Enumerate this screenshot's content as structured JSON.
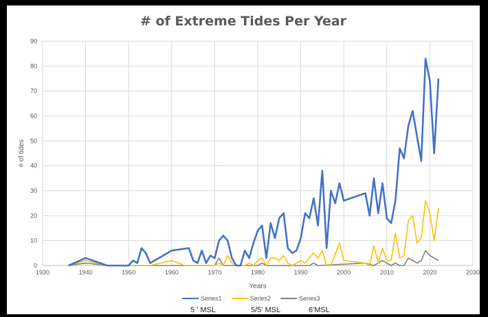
{
  "chart_data": {
    "type": "line",
    "title": "# of Extreme Tides Per Year",
    "xlabel": "Years",
    "ylabel": "# of tides",
    "xlim": [
      1930,
      2030
    ],
    "ylim": [
      0,
      90
    ],
    "x_ticks": [
      1930,
      1940,
      1950,
      1960,
      1970,
      1980,
      1990,
      2000,
      2010,
      2020,
      2030
    ],
    "y_ticks": [
      0,
      10,
      20,
      30,
      40,
      50,
      60,
      70,
      80,
      90
    ],
    "grid": true,
    "legend_position": "bottom",
    "series": [
      {
        "name": "Series1",
        "color": "#4472C4",
        "points": [
          [
            1936,
            0
          ],
          [
            1940,
            3
          ],
          [
            1945,
            0
          ],
          [
            1950,
            0
          ],
          [
            1951,
            2
          ],
          [
            1952,
            1
          ],
          [
            1953,
            7
          ],
          [
            1954,
            5
          ],
          [
            1955,
            1
          ],
          [
            1960,
            6
          ],
          [
            1964,
            7
          ],
          [
            1965,
            2
          ],
          [
            1966,
            1
          ],
          [
            1967,
            6
          ],
          [
            1968,
            1
          ],
          [
            1969,
            4
          ],
          [
            1970,
            3
          ],
          [
            1971,
            10
          ],
          [
            1972,
            12
          ],
          [
            1973,
            10
          ],
          [
            1974,
            3
          ],
          [
            1975,
            0
          ],
          [
            1976,
            0
          ],
          [
            1977,
            6
          ],
          [
            1978,
            3
          ],
          [
            1979,
            9
          ],
          [
            1980,
            14
          ],
          [
            1981,
            16
          ],
          [
            1982,
            3
          ],
          [
            1983,
            17
          ],
          [
            1984,
            11
          ],
          [
            1985,
            19
          ],
          [
            1986,
            21
          ],
          [
            1987,
            7
          ],
          [
            1988,
            5
          ],
          [
            1989,
            6
          ],
          [
            1990,
            11
          ],
          [
            1991,
            21
          ],
          [
            1992,
            19
          ],
          [
            1993,
            27
          ],
          [
            1994,
            16
          ],
          [
            1995,
            38
          ],
          [
            1996,
            7
          ],
          [
            1997,
            30
          ],
          [
            1998,
            25
          ],
          [
            1999,
            33
          ],
          [
            2000,
            26
          ],
          [
            2005,
            29
          ],
          [
            2006,
            20
          ],
          [
            2007,
            35
          ],
          [
            2008,
            21
          ],
          [
            2009,
            33
          ],
          [
            2010,
            19
          ],
          [
            2011,
            17
          ],
          [
            2012,
            26
          ],
          [
            2013,
            47
          ],
          [
            2014,
            43
          ],
          [
            2015,
            56
          ],
          [
            2016,
            62
          ],
          [
            2017,
            52
          ],
          [
            2018,
            42
          ],
          [
            2019,
            83
          ],
          [
            2020,
            74
          ],
          [
            2021,
            45
          ],
          [
            2022,
            75
          ]
        ]
      },
      {
        "name": "Series2",
        "color": "#FFC000",
        "points": [
          [
            1936,
            0
          ],
          [
            1940,
            2
          ],
          [
            1945,
            0
          ],
          [
            1955,
            0
          ],
          [
            1960,
            2
          ],
          [
            1963,
            0
          ],
          [
            1970,
            0
          ],
          [
            1971,
            1
          ],
          [
            1972,
            0
          ],
          [
            1973,
            4
          ],
          [
            1974,
            1
          ],
          [
            1975,
            0
          ],
          [
            1977,
            0
          ],
          [
            1978,
            1
          ],
          [
            1979,
            0
          ],
          [
            1980,
            2
          ],
          [
            1981,
            3
          ],
          [
            1982,
            0
          ],
          [
            1983,
            3
          ],
          [
            1984,
            3
          ],
          [
            1985,
            2
          ],
          [
            1986,
            4
          ],
          [
            1987,
            1
          ],
          [
            1988,
            0
          ],
          [
            1989,
            1
          ],
          [
            1990,
            2
          ],
          [
            1991,
            1
          ],
          [
            1992,
            3
          ],
          [
            1993,
            5
          ],
          [
            1994,
            3
          ],
          [
            1995,
            6
          ],
          [
            1996,
            0
          ],
          [
            1997,
            0
          ],
          [
            1999,
            9
          ],
          [
            2000,
            2
          ],
          [
            2005,
            1
          ],
          [
            2006,
            0
          ],
          [
            2007,
            8
          ],
          [
            2008,
            1
          ],
          [
            2009,
            7
          ],
          [
            2010,
            2
          ],
          [
            2011,
            2
          ],
          [
            2012,
            13
          ],
          [
            2013,
            3
          ],
          [
            2014,
            4
          ],
          [
            2015,
            18
          ],
          [
            2016,
            20
          ],
          [
            2017,
            9
          ],
          [
            2018,
            11
          ],
          [
            2019,
            26
          ],
          [
            2020,
            21
          ],
          [
            2021,
            10
          ],
          [
            2022,
            23
          ]
        ]
      },
      {
        "name": "Series3",
        "color": "#808080",
        "points": [
          [
            1936,
            0
          ],
          [
            1940,
            1
          ],
          [
            1945,
            0
          ],
          [
            1970,
            0
          ],
          [
            1971,
            3
          ],
          [
            1972,
            0
          ],
          [
            1980,
            0
          ],
          [
            1981,
            1
          ],
          [
            1982,
            0
          ],
          [
            1992,
            0
          ],
          [
            1993,
            1
          ],
          [
            1994,
            0
          ],
          [
            2005,
            1
          ],
          [
            2007,
            0
          ],
          [
            2009,
            2
          ],
          [
            2010,
            1
          ],
          [
            2011,
            0
          ],
          [
            2012,
            1
          ],
          [
            2013,
            0
          ],
          [
            2014,
            0
          ],
          [
            2015,
            3
          ],
          [
            2016,
            2
          ],
          [
            2017,
            1
          ],
          [
            2018,
            2
          ],
          [
            2019,
            6
          ],
          [
            2020,
            4
          ],
          [
            2022,
            2
          ]
        ]
      }
    ]
  },
  "sublabels": [
    "5 ' MSL",
    "5/5' MSL",
    "6'MSL"
  ]
}
